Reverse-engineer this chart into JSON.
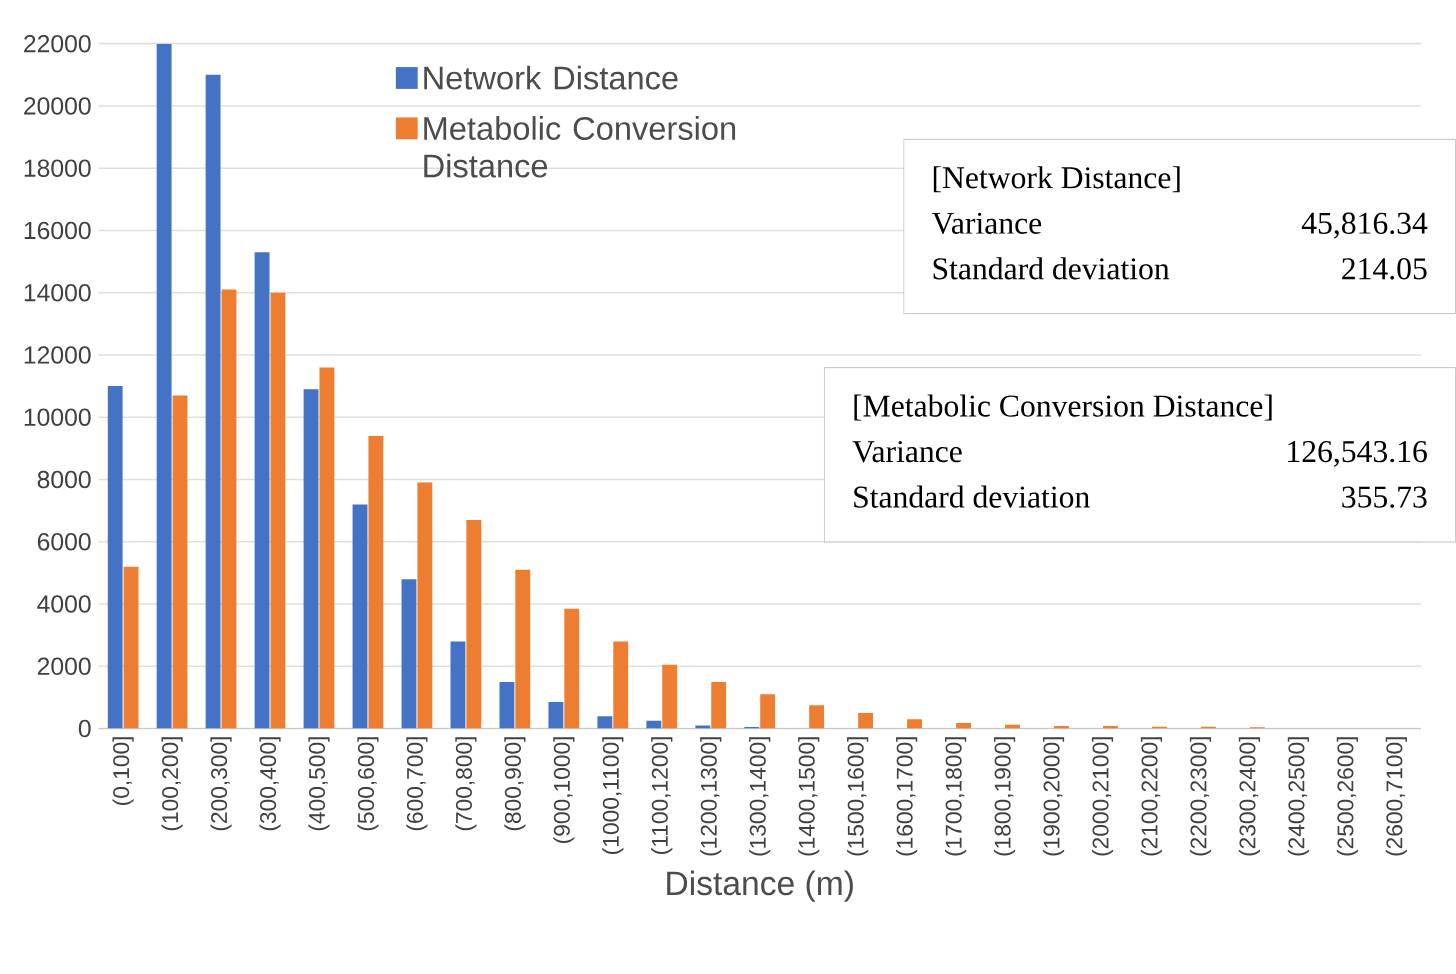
{
  "chart_data": {
    "type": "bar",
    "xlabel": "Distance (m)",
    "categories": [
      "(0,100]",
      "(100,200]",
      "(200,300]",
      "(300,400]",
      "(400,500]",
      "(500,600]",
      "(600,700]",
      "(700,800]",
      "(800,900]",
      "(900,1000]",
      "(1000,1100]",
      "(1100,1200]",
      "(1200,1300]",
      "(1300,1400]",
      "(1400,1500]",
      "(1500,1600]",
      "(1600,1700]",
      "(1700,1800]",
      "(1800,1900]",
      "(1900,2000]",
      "(2000,2100]",
      "(2100,2200]",
      "(2200,2300]",
      "(2300,2400]",
      "(2400,2500]",
      "(2500,2600]",
      "(2600,7100]"
    ],
    "series": [
      {
        "name": "Network Distance",
        "color": "#4472c4",
        "values": [
          11000,
          22000,
          21000,
          15300,
          10900,
          7200,
          4800,
          2800,
          1500,
          850,
          400,
          250,
          100,
          50,
          null,
          null,
          null,
          0,
          0,
          0,
          0,
          0,
          0,
          0,
          0,
          0,
          0
        ]
      },
      {
        "name": "Metabolic Conversion Distance",
        "color": "#ed7d31",
        "values": [
          5200,
          10700,
          14100,
          14000,
          11600,
          9400,
          7900,
          6700,
          5100,
          3850,
          2800,
          2050,
          1500,
          1100,
          750,
          500,
          300,
          180,
          120,
          80,
          80,
          60,
          60,
          40,
          0,
          0,
          0
        ]
      }
    ],
    "ylim": [
      0,
      22000
    ],
    "yticks": [
      0,
      2000,
      4000,
      6000,
      8000,
      10000,
      12000,
      14000,
      16000,
      18000,
      20000,
      22000
    ],
    "grid": "y",
    "legend": "top",
    "annotations": [
      "[Network Distance]",
      "Variance",
      "45,816.34",
      "Standard deviation",
      "214.05",
      "[Metabolic Conversion Distance]",
      "Variance",
      "126,543.16",
      "Standard deviation",
      "355.73"
    ]
  }
}
